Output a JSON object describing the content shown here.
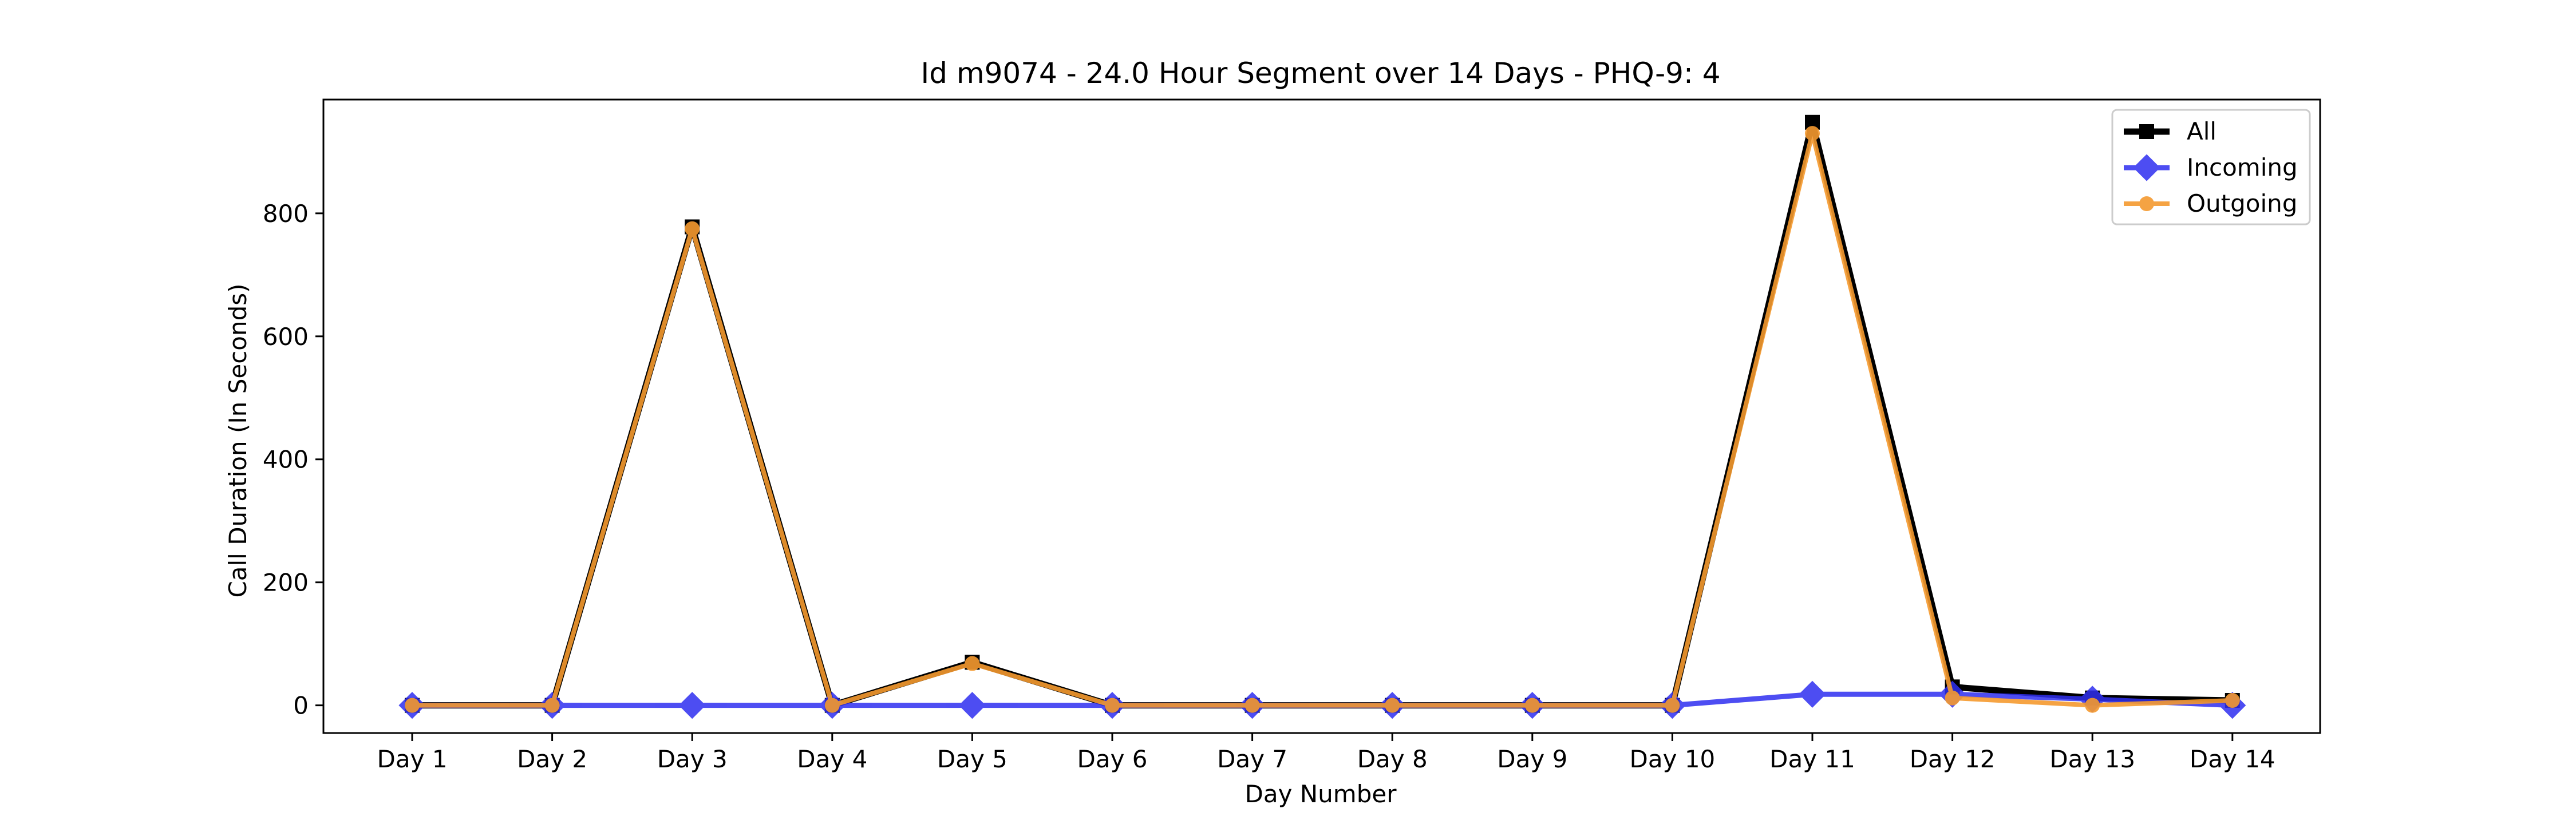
{
  "chart_data": {
    "type": "line",
    "title": "Id m9074 - 24.0 Hour Segment over 14 Days - PHQ-9: 4",
    "xlabel": "Day Number",
    "ylabel": "Call Duration (In Seconds)",
    "categories": [
      "Day 1",
      "Day 2",
      "Day 3",
      "Day 4",
      "Day 5",
      "Day 6",
      "Day 7",
      "Day 8",
      "Day 9",
      "Day 10",
      "Day 11",
      "Day 12",
      "Day 13",
      "Day 14"
    ],
    "ylim": [
      -45,
      985
    ],
    "yticks": [
      0,
      200,
      400,
      600,
      800
    ],
    "grid": false,
    "legend_position": "top-right",
    "series": [
      {
        "name": "All",
        "color": "#000000",
        "marker": "square",
        "values": [
          0,
          0,
          778,
          0,
          70,
          0,
          0,
          0,
          0,
          0,
          948,
          30,
          12,
          8
        ]
      },
      {
        "name": "Incoming",
        "color": "#2f2ff0",
        "marker": "diamond",
        "values": [
          0,
          0,
          0,
          0,
          0,
          0,
          0,
          0,
          0,
          0,
          18,
          18,
          10,
          0
        ]
      },
      {
        "name": "Outgoing",
        "color": "#f59a2f",
        "marker": "circle",
        "values": [
          0,
          0,
          775,
          0,
          68,
          0,
          0,
          0,
          0,
          0,
          930,
          12,
          0,
          8
        ]
      }
    ]
  }
}
